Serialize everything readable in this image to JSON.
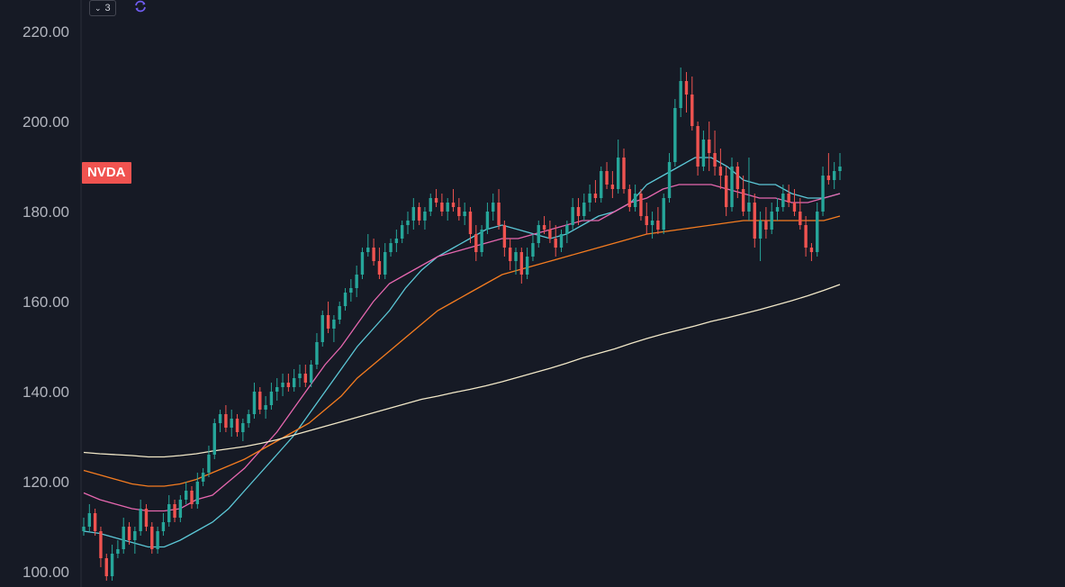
{
  "indicator_toggle": {
    "count": "3",
    "chevron_icon": "chevron-down-icon"
  },
  "sync_icon": {
    "icon": "sync-icon",
    "color": "#6f5cf0"
  },
  "symbol": {
    "label": "NVDA",
    "color": "#f05350"
  },
  "colors": {
    "background": "#161a25",
    "up_candle": "#26a69a",
    "down_candle": "#ef5350",
    "axis_text": "#b2b5be",
    "separator": "#2a2e39"
  },
  "chart_data": {
    "type": "candlestick",
    "ylim": [
      98,
      224
    ],
    "y_ticks": [
      "100.00",
      "120.00",
      "140.00",
      "160.00",
      "180.00",
      "200.00",
      "220.00"
    ],
    "grid": false,
    "candles_ohlc": [
      [
        109,
        112,
        108,
        110
      ],
      [
        110,
        115,
        109,
        113
      ],
      [
        113,
        114,
        108,
        109
      ],
      [
        109,
        110,
        101,
        103
      ],
      [
        103,
        104,
        98,
        99
      ],
      [
        99,
        106,
        98,
        104
      ],
      [
        104,
        107,
        103,
        105
      ],
      [
        105,
        112,
        104,
        110
      ],
      [
        110,
        111,
        106,
        107
      ],
      [
        107,
        110,
        104,
        109
      ],
      [
        109,
        116,
        108,
        114
      ],
      [
        114,
        115,
        109,
        110
      ],
      [
        110,
        111,
        104,
        105
      ],
      [
        105,
        110,
        104,
        109
      ],
      [
        109,
        113,
        108,
        111
      ],
      [
        111,
        117,
        110,
        115
      ],
      [
        115,
        116,
        111,
        112
      ],
      [
        112,
        117,
        111,
        116
      ],
      [
        116,
        120,
        115,
        118
      ],
      [
        118,
        119,
        114,
        115
      ],
      [
        115,
        122,
        114,
        120
      ],
      [
        120,
        123,
        119,
        122
      ],
      [
        122,
        128,
        121,
        126
      ],
      [
        126,
        134,
        125,
        133
      ],
      [
        133,
        136,
        131,
        135
      ],
      [
        135,
        137,
        131,
        132
      ],
      [
        132,
        136,
        130,
        134
      ],
      [
        134,
        135,
        130,
        131
      ],
      [
        131,
        134,
        129,
        133
      ],
      [
        133,
        136,
        132,
        135
      ],
      [
        135,
        142,
        134,
        140
      ],
      [
        140,
        141,
        135,
        136
      ],
      [
        136,
        139,
        134,
        137
      ],
      [
        137,
        142,
        136,
        140
      ],
      [
        140,
        143,
        138,
        141
      ],
      [
        141,
        144,
        139,
        142
      ],
      [
        142,
        144,
        140,
        141
      ],
      [
        141,
        145,
        140,
        143
      ],
      [
        143,
        146,
        141,
        144
      ],
      [
        144,
        146,
        141,
        142
      ],
      [
        142,
        147,
        141,
        146
      ],
      [
        146,
        153,
        145,
        151
      ],
      [
        151,
        158,
        150,
        157
      ],
      [
        157,
        160,
        153,
        154
      ],
      [
        154,
        157,
        151,
        156
      ],
      [
        156,
        160,
        155,
        159
      ],
      [
        159,
        163,
        158,
        162
      ],
      [
        162,
        165,
        160,
        163
      ],
      [
        163,
        168,
        161,
        166
      ],
      [
        166,
        172,
        165,
        171
      ],
      [
        171,
        175,
        170,
        172
      ],
      [
        172,
        174,
        168,
        169
      ],
      [
        169,
        172,
        165,
        166
      ],
      [
        166,
        173,
        165,
        171
      ],
      [
        171,
        174,
        170,
        173
      ],
      [
        173,
        176,
        171,
        174
      ],
      [
        174,
        178,
        173,
        177
      ],
      [
        177,
        180,
        175,
        178
      ],
      [
        178,
        183,
        176,
        181
      ],
      [
        181,
        182,
        177,
        178
      ],
      [
        178,
        181,
        176,
        180
      ],
      [
        180,
        184,
        179,
        183
      ],
      [
        183,
        185,
        181,
        182
      ],
      [
        182,
        184,
        179,
        180
      ],
      [
        180,
        183,
        178,
        182
      ],
      [
        182,
        185,
        180,
        181
      ],
      [
        181,
        183,
        178,
        179
      ],
      [
        179,
        182,
        177,
        180
      ],
      [
        180,
        181,
        173,
        175
      ],
      [
        175,
        177,
        169,
        171
      ],
      [
        171,
        177,
        170,
        176
      ],
      [
        176,
        182,
        175,
        180
      ],
      [
        180,
        184,
        178,
        182
      ],
      [
        182,
        185,
        176,
        177
      ],
      [
        177,
        178,
        170,
        172
      ],
      [
        172,
        174,
        167,
        169
      ],
      [
        169,
        172,
        166,
        171
      ],
      [
        171,
        172,
        164,
        166
      ],
      [
        166,
        172,
        165,
        170
      ],
      [
        170,
        175,
        169,
        173
      ],
      [
        173,
        178,
        172,
        177
      ],
      [
        177,
        179,
        175,
        176
      ],
      [
        176,
        178,
        173,
        174
      ],
      [
        174,
        177,
        170,
        172
      ],
      [
        172,
        176,
        171,
        175
      ],
      [
        175,
        178,
        173,
        177
      ],
      [
        177,
        183,
        176,
        181
      ],
      [
        181,
        183,
        177,
        179
      ],
      [
        179,
        184,
        178,
        182
      ],
      [
        182,
        186,
        180,
        184
      ],
      [
        184,
        187,
        182,
        183
      ],
      [
        183,
        190,
        182,
        189
      ],
      [
        189,
        191,
        185,
        186
      ],
      [
        186,
        189,
        183,
        185
      ],
      [
        185,
        196,
        184,
        192
      ],
      [
        192,
        194,
        184,
        185
      ],
      [
        185,
        186,
        180,
        181
      ],
      [
        181,
        186,
        180,
        184
      ],
      [
        184,
        185,
        178,
        179
      ],
      [
        179,
        182,
        175,
        177
      ],
      [
        177,
        180,
        174,
        178
      ],
      [
        178,
        181,
        175,
        176
      ],
      [
        176,
        184,
        175,
        183
      ],
      [
        183,
        193,
        182,
        191
      ],
      [
        191,
        205,
        190,
        203
      ],
      [
        203,
        212,
        201,
        209
      ],
      [
        209,
        211,
        202,
        206
      ],
      [
        206,
        210,
        198,
        199
      ],
      [
        199,
        200,
        188,
        190
      ],
      [
        190,
        198,
        189,
        196
      ],
      [
        196,
        200,
        189,
        193
      ],
      [
        193,
        198,
        188,
        190
      ],
      [
        190,
        194,
        185,
        188
      ],
      [
        188,
        190,
        179,
        181
      ],
      [
        181,
        192,
        180,
        190
      ],
      [
        190,
        191,
        183,
        185
      ],
      [
        185,
        188,
        179,
        180
      ],
      [
        180,
        192,
        178,
        182
      ],
      [
        182,
        184,
        172,
        174
      ],
      [
        174,
        180,
        169,
        178
      ],
      [
        178,
        181,
        174,
        176
      ],
      [
        176,
        182,
        175,
        180
      ],
      [
        180,
        183,
        178,
        181
      ],
      [
        181,
        186,
        180,
        184
      ],
      [
        184,
        186,
        181,
        182
      ],
      [
        182,
        185,
        179,
        180
      ],
      [
        180,
        183,
        176,
        177
      ],
      [
        177,
        179,
        170,
        172
      ],
      [
        172,
        173,
        169,
        171
      ],
      [
        171,
        182,
        170,
        180
      ],
      [
        180,
        190,
        179,
        188
      ],
      [
        188,
        193,
        186,
        187
      ],
      [
        187,
        191,
        185,
        189
      ],
      [
        189,
        193,
        187,
        190
      ]
    ],
    "moving_averages": [
      {
        "color": "#5cc8d7",
        "values": [
          109,
          108.5,
          107.5,
          106.5,
          105.5,
          105.5,
          107,
          109,
          111,
          114,
          118,
          122,
          126,
          130,
          135,
          140,
          145,
          150,
          154,
          158,
          163,
          167,
          170,
          172,
          174,
          176,
          177,
          176,
          175,
          174,
          175,
          177,
          179,
          180,
          182,
          186,
          188,
          190,
          192,
          192,
          190,
          187,
          186,
          186,
          184,
          183,
          183,
          184
        ]
      },
      {
        "color": "#e667af",
        "values": [
          117.5,
          116,
          115,
          114,
          113.5,
          113.5,
          114,
          116,
          117,
          120,
          123,
          127,
          131,
          136,
          141,
          146,
          150,
          155,
          160,
          164,
          166,
          168,
          170,
          171,
          172,
          173,
          174,
          174,
          175,
          176,
          177,
          178,
          178,
          180,
          182,
          183,
          185,
          186,
          186,
          186,
          185,
          184,
          183,
          183,
          182,
          182,
          183,
          184
        ]
      },
      {
        "color": "#f57c20",
        "values": [
          122.5,
          121.5,
          120.5,
          119.5,
          119,
          119,
          119.5,
          120.5,
          122,
          123.5,
          125,
          127,
          129,
          131,
          133,
          136,
          139,
          143,
          146,
          149,
          152,
          155,
          158,
          160,
          162,
          164,
          166,
          167,
          168,
          169,
          170,
          171,
          172,
          173,
          174,
          175,
          175.5,
          176,
          176.5,
          177,
          177.5,
          178,
          178,
          178,
          178,
          178,
          178,
          179
        ]
      },
      {
        "color": "#f2e8c8",
        "values": [
          126.5,
          126.2,
          126,
          125.8,
          125.5,
          125.5,
          125.8,
          126.2,
          126.8,
          127.3,
          127.8,
          128.5,
          129.3,
          130.3,
          131.3,
          132.3,
          133.3,
          134.3,
          135.3,
          136.3,
          137.3,
          138.3,
          139,
          139.8,
          140.5,
          141.3,
          142.2,
          143.2,
          144.2,
          145.2,
          146.3,
          147.5,
          148.5,
          149.5,
          150.7,
          151.8,
          152.8,
          153.7,
          154.6,
          155.6,
          156.4,
          157.3,
          158.2,
          159.2,
          160.2,
          161.3,
          162.5,
          163.8
        ]
      }
    ]
  }
}
